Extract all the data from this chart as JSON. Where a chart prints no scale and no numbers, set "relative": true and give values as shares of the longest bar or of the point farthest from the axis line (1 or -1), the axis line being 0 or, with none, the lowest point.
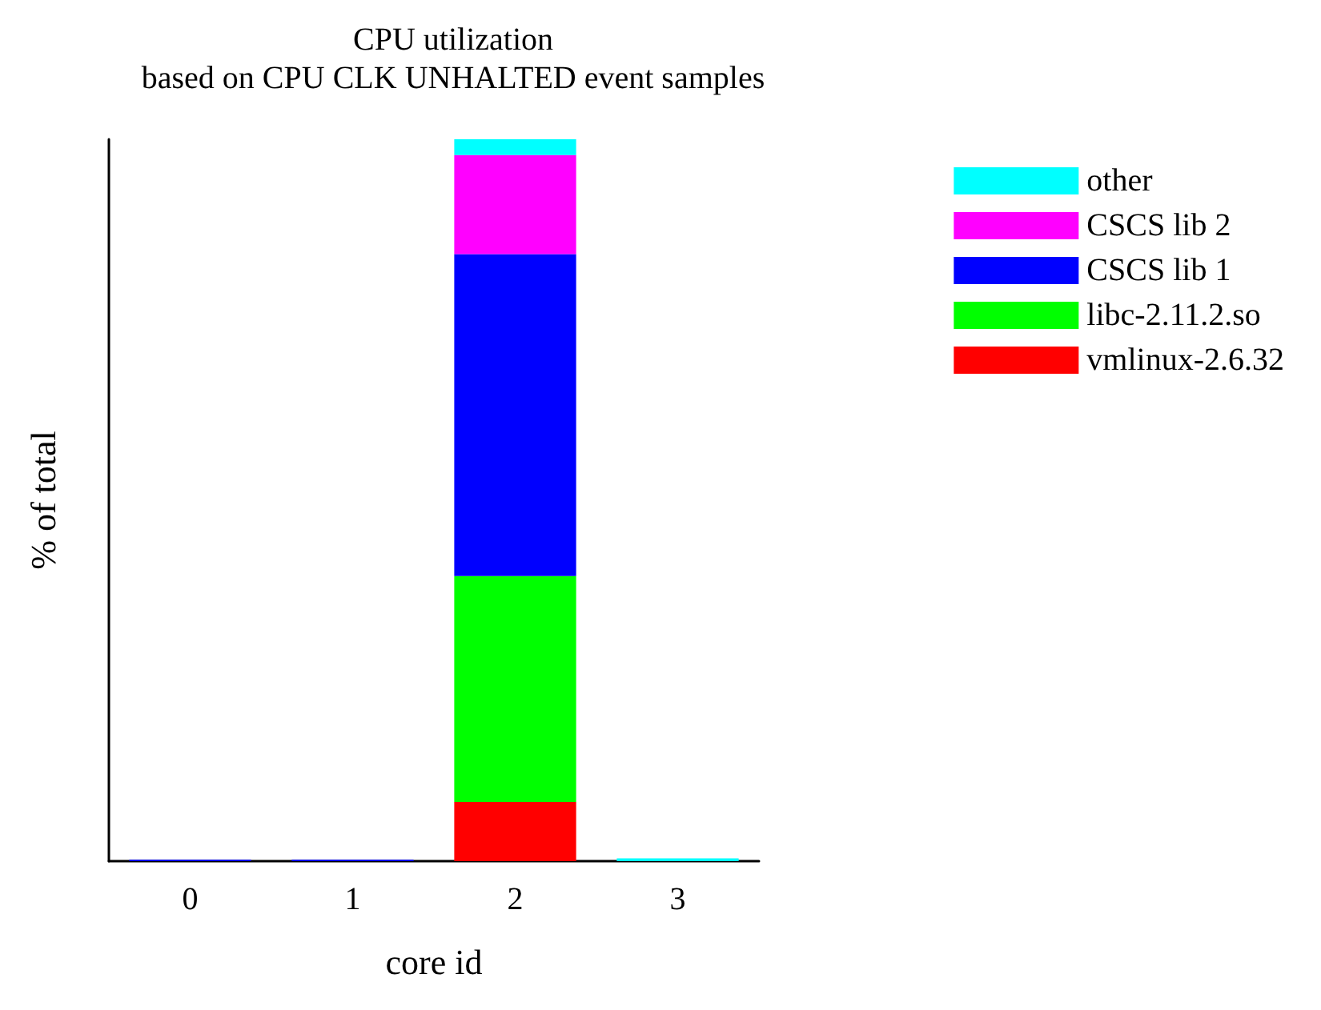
{
  "chart_data": {
    "type": "bar",
    "title": "CPU utilization",
    "subtitle": "based on CPU CLK UNHALTED event samples",
    "xlabel": "core id",
    "ylabel": "% of total",
    "categories": [
      "0",
      "1",
      "2",
      "3"
    ],
    "stacked": true,
    "relative": true,
    "legend": "top right",
    "grid": false,
    "series": [
      {
        "name": "vmlinux-2.6.32",
        "color": "#ff0000",
        "values": [
          0,
          0,
          0.082,
          0
        ]
      },
      {
        "name": "libc-2.11.2.so",
        "color": "#00ff00",
        "values": [
          0,
          0,
          0.313,
          0
        ]
      },
      {
        "name": "CSCS lib 1",
        "color": "#0000ff",
        "values": [
          0.002,
          0.002,
          0.446,
          0
        ]
      },
      {
        "name": "CSCS lib 2",
        "color": "#ff00ff",
        "values": [
          0,
          0,
          0.137,
          0
        ]
      },
      {
        "name": "other",
        "color": "#00ffff",
        "values": [
          0,
          0,
          0.022,
          0.004
        ]
      }
    ]
  }
}
